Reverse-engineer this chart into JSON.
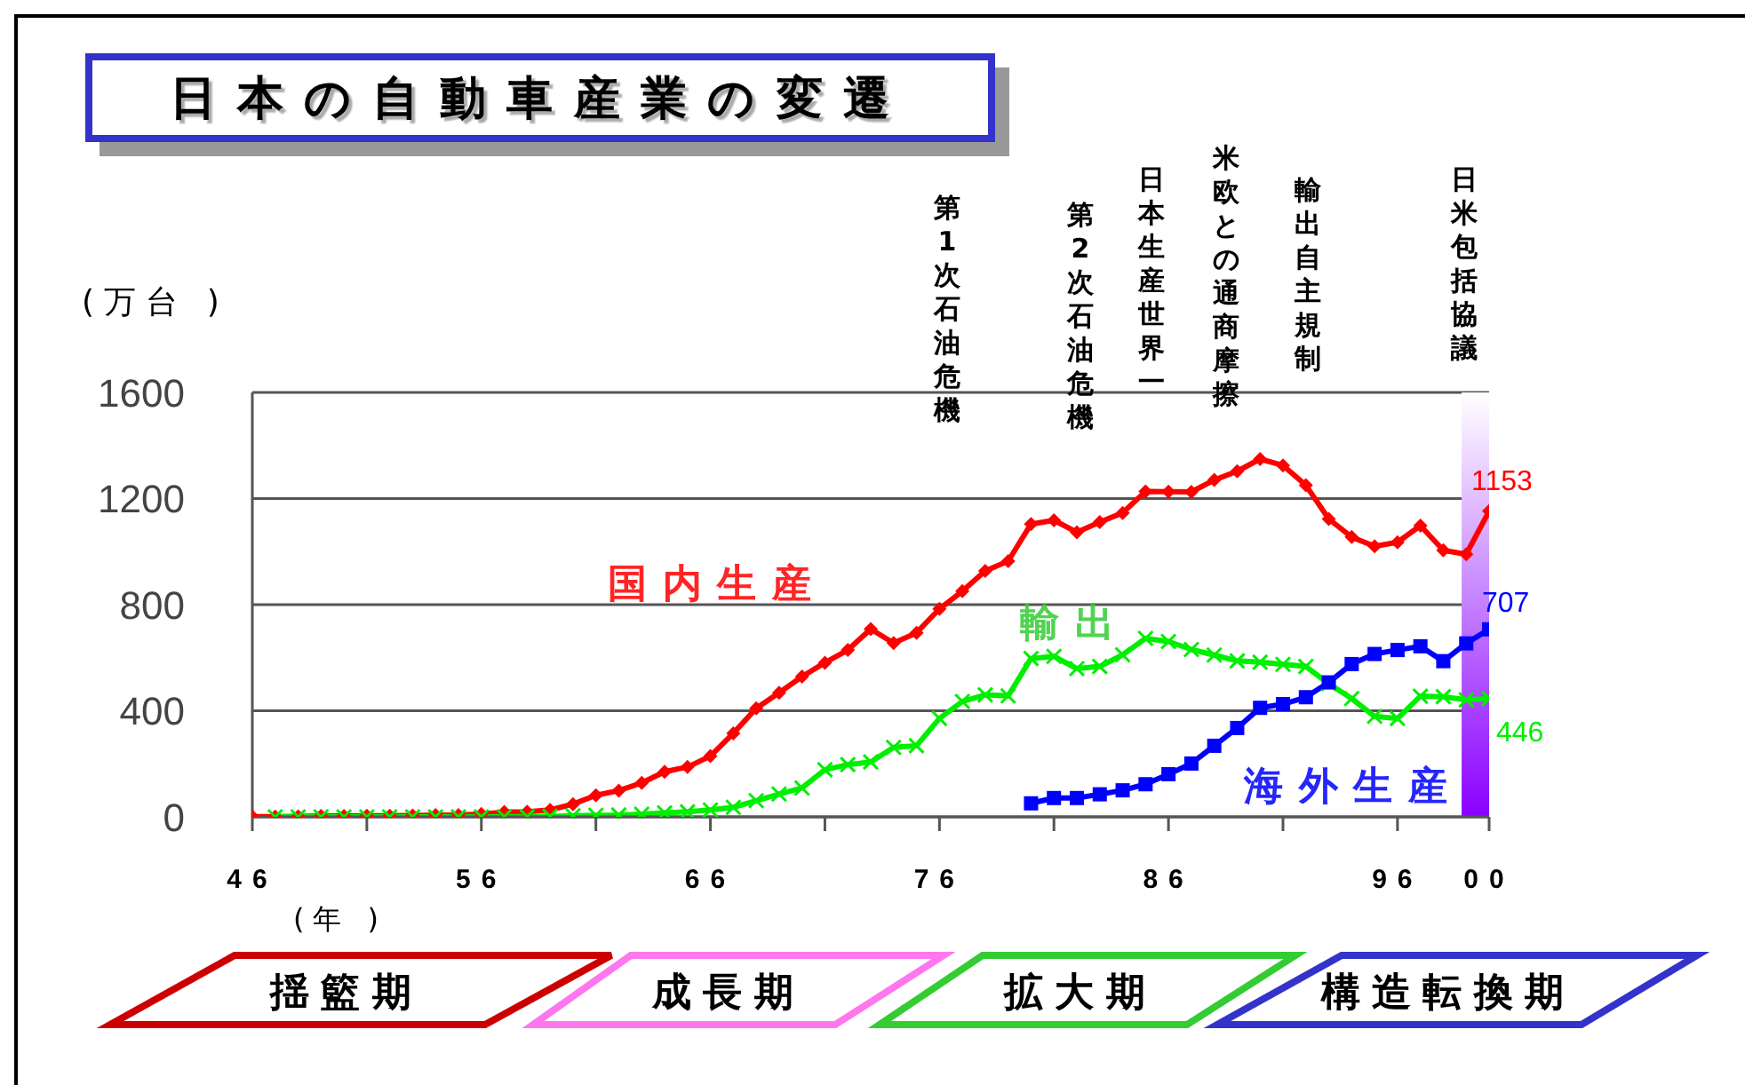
{
  "chart_data": {
    "type": "line",
    "title": "日本の自動車産業の変遷",
    "ylabel": "(万台 )",
    "xlabel": "(年 )",
    "xlim": [
      1946,
      2000
    ],
    "ylim": [
      0,
      1600
    ],
    "yticks": [
      0,
      400,
      800,
      1200,
      1600
    ],
    "xticks": [
      {
        "value": 1946,
        "label": "46"
      },
      {
        "value": 1951,
        "label": null
      },
      {
        "value": 1956,
        "label": "56"
      },
      {
        "value": 1961,
        "label": null
      },
      {
        "value": 1966,
        "label": "66"
      },
      {
        "value": 1971,
        "label": null
      },
      {
        "value": 1976,
        "label": "76"
      },
      {
        "value": 1981,
        "label": null
      },
      {
        "value": 1986,
        "label": "86"
      },
      {
        "value": 1991,
        "label": null
      },
      {
        "value": 1996,
        "label": "96"
      },
      {
        "value": 2000,
        "label": "00"
      }
    ],
    "grid": "y",
    "legend": false,
    "line_style": "solid",
    "series": [
      {
        "name": "国内生産",
        "color": "#ff0000",
        "marker": "diamond",
        "x": [
          1946,
          1947,
          1948,
          1949,
          1950,
          1951,
          1952,
          1953,
          1954,
          1955,
          1956,
          1957,
          1958,
          1959,
          1960,
          1961,
          1962,
          1963,
          1964,
          1965,
          1966,
          1967,
          1968,
          1969,
          1970,
          1971,
          1972,
          1973,
          1974,
          1975,
          1976,
          1977,
          1978,
          1979,
          1980,
          1981,
          1982,
          1983,
          1984,
          1985,
          1986,
          1987,
          1988,
          1989,
          1990,
          1991,
          1992,
          1993,
          1994,
          1995,
          1996,
          1997,
          1998,
          1999,
          2000
        ],
        "values": [
          1,
          1,
          2,
          3,
          3,
          4,
          4,
          5,
          7,
          7,
          11,
          18,
          19,
          26,
          48,
          81,
          99,
          128,
          170,
          188,
          229,
          315,
          409,
          468,
          529,
          581,
          629,
          708,
          655,
          694,
          784,
          851,
          927,
          964,
          1104,
          1118,
          1073,
          1111,
          1146,
          1227,
          1226,
          1225,
          1270,
          1303,
          1349,
          1325,
          1250,
          1123,
          1055,
          1020,
          1035,
          1098,
          1005,
          990,
          1153
        ],
        "value_labels": [
          null,
          null,
          null,
          null,
          null,
          null,
          null,
          null,
          null,
          null,
          null,
          null,
          null,
          null,
          null,
          null,
          null,
          null,
          null,
          null,
          null,
          null,
          null,
          null,
          null,
          null,
          null,
          null,
          null,
          null,
          null,
          null,
          null,
          null,
          null,
          null,
          null,
          null,
          null,
          null,
          null,
          null,
          null,
          null,
          null,
          null,
          null,
          null,
          null,
          null,
          null,
          null,
          null,
          null,
          "1153"
        ]
      },
      {
        "name": "輸出",
        "color": "#00ee00",
        "marker": "cross",
        "x": [
          1947,
          1948,
          1949,
          1950,
          1951,
          1952,
          1953,
          1954,
          1955,
          1956,
          1957,
          1958,
          1959,
          1960,
          1961,
          1962,
          1963,
          1964,
          1965,
          1966,
          1967,
          1968,
          1969,
          1970,
          1971,
          1972,
          1973,
          1974,
          1975,
          1976,
          1977,
          1978,
          1979,
          1980,
          1981,
          1982,
          1983,
          1984,
          1985,
          1986,
          1987,
          1988,
          1989,
          1990,
          1991,
          1992,
          1993,
          1994,
          1995,
          1996,
          1997,
          1998,
          1999,
          2000
        ],
        "values": [
          0,
          0,
          0,
          0,
          0,
          0,
          0,
          0,
          0,
          0,
          1,
          1,
          2,
          4,
          6,
          7,
          10,
          15,
          19,
          26,
          36,
          61,
          86,
          109,
          178,
          197,
          207,
          262,
          268,
          371,
          435,
          460,
          456,
          597,
          605,
          559,
          567,
          611,
          673,
          661,
          631,
          610,
          588,
          583,
          575,
          567,
          502,
          446,
          379,
          371,
          455,
          453,
          441,
          446
        ],
        "value_labels": [
          null,
          null,
          null,
          null,
          null,
          null,
          null,
          null,
          null,
          null,
          null,
          null,
          null,
          null,
          null,
          null,
          null,
          null,
          null,
          null,
          null,
          null,
          null,
          null,
          null,
          null,
          null,
          null,
          null,
          null,
          null,
          null,
          null,
          null,
          null,
          null,
          null,
          null,
          null,
          null,
          null,
          null,
          null,
          null,
          null,
          null,
          null,
          null,
          null,
          null,
          null,
          null,
          null,
          "446"
        ]
      },
      {
        "name": "海外生産",
        "color": "#0000ff",
        "marker": "square",
        "x": [
          1980,
          1981,
          1982,
          1983,
          1984,
          1985,
          1986,
          1987,
          1988,
          1989,
          1990,
          1991,
          1992,
          1993,
          1994,
          1995,
          1996,
          1997,
          1998,
          1999,
          2000
        ],
        "values": [
          51,
          71,
          71,
          85,
          100,
          123,
          161,
          201,
          268,
          335,
          411,
          425,
          451,
          507,
          576,
          614,
          629,
          643,
          587,
          654,
          707
        ],
        "value_labels": [
          null,
          null,
          null,
          null,
          null,
          null,
          null,
          null,
          null,
          null,
          null,
          null,
          null,
          null,
          null,
          null,
          null,
          null,
          null,
          null,
          "707"
        ]
      }
    ],
    "bands": [
      {
        "axis": "x",
        "from": 1998.8,
        "to": 2000,
        "color": "#8a00ff"
      }
    ],
    "annotations": [
      "第1次石油危機",
      "第2次石油危機",
      "日本生産世界一",
      "米欧との通商摩擦",
      "輸出自主規制",
      "日米包括協議",
      "揺籃期",
      "成長期",
      "拡大期",
      "構造転換期"
    ]
  }
}
